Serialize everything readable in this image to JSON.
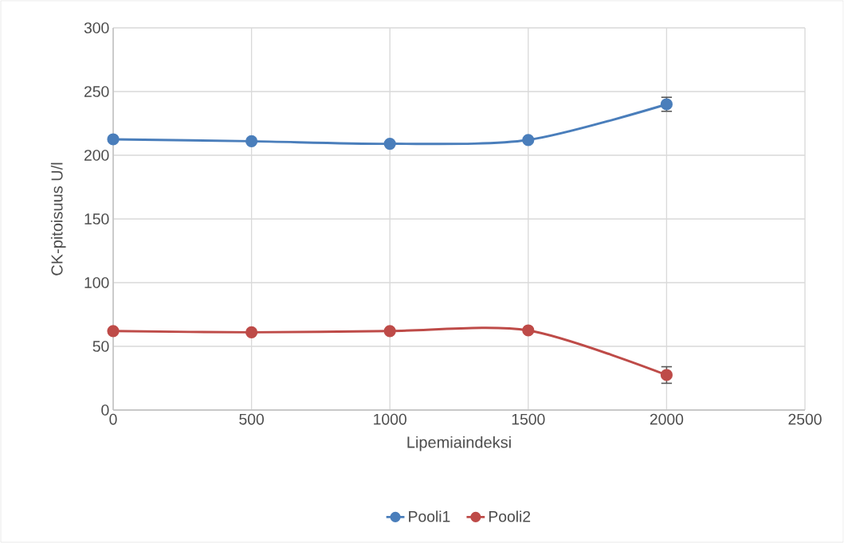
{
  "chart_data": {
    "type": "line",
    "xlabel": "Lipemiaindeksi",
    "ylabel": "CK-pitoisuus U/l",
    "x": [
      0,
      500,
      1000,
      1500,
      2000
    ],
    "series": [
      {
        "name": "Pooli1",
        "color": "#4a7ebb",
        "values": [
          212.5,
          211,
          209,
          212,
          240
        ],
        "errors": [
          null,
          null,
          null,
          null,
          5.5
        ]
      },
      {
        "name": "Pooli2",
        "color": "#be4b48",
        "values": [
          62,
          61,
          62,
          62.5,
          27.5
        ],
        "errors": [
          null,
          null,
          null,
          null,
          6.5
        ]
      }
    ],
    "xlim": [
      0,
      2500
    ],
    "xticks": [
      0,
      500,
      1000,
      1500,
      2000,
      2500
    ],
    "ylim": [
      0,
      300
    ],
    "yticks": [
      0,
      50,
      100,
      150,
      200,
      250,
      300
    ],
    "grid": true,
    "legend": "bottom",
    "marker": "circle",
    "line_style": "solid"
  }
}
